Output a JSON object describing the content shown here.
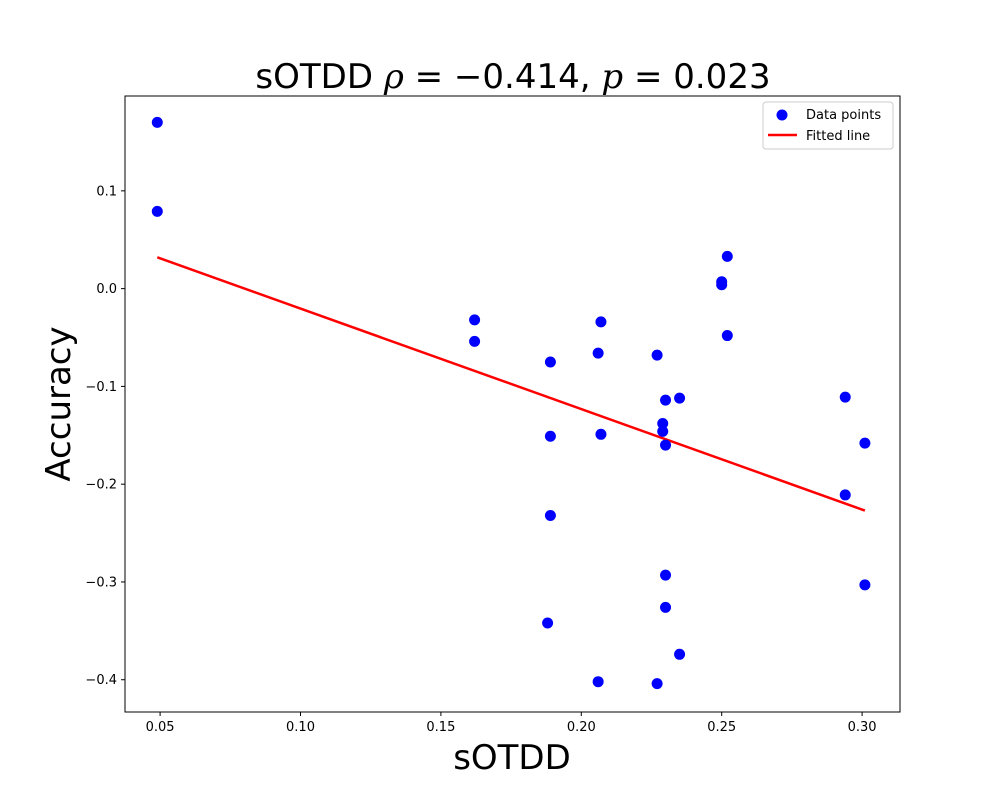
{
  "chart_data": {
    "type": "scatter",
    "title": {
      "prefix": "sOTDD ",
      "rho_symbol": "ρ",
      "rho_part": " = −0.414, ",
      "p_symbol": "p",
      "p_part": " = 0.023"
    },
    "xlabel": "sOTDD",
    "ylabel": "Accuracy",
    "xlim": [
      0.0375,
      0.3135
    ],
    "ylim": [
      -0.433,
      0.197
    ],
    "x_ticks": [
      0.05,
      0.1,
      0.15,
      0.2,
      0.25,
      0.3
    ],
    "x_tick_labels": [
      "0.05",
      "0.10",
      "0.15",
      "0.20",
      "0.25",
      "0.30"
    ],
    "y_ticks": [
      -0.4,
      -0.3,
      -0.2,
      -0.1,
      0.0,
      0.1
    ],
    "y_tick_labels": [
      "−0.4",
      "−0.3",
      "−0.2",
      "−0.1",
      "0.0",
      "0.1"
    ],
    "grid": false,
    "legend_position": "top-right",
    "series": [
      {
        "name": "Data points",
        "kind": "scatter",
        "color": "#0000ff",
        "points": [
          {
            "x": 0.049,
            "y": 0.17
          },
          {
            "x": 0.049,
            "y": 0.079
          },
          {
            "x": 0.162,
            "y": -0.032
          },
          {
            "x": 0.162,
            "y": -0.054
          },
          {
            "x": 0.189,
            "y": -0.075
          },
          {
            "x": 0.189,
            "y": -0.151
          },
          {
            "x": 0.189,
            "y": -0.232
          },
          {
            "x": 0.188,
            "y": -0.342
          },
          {
            "x": 0.207,
            "y": -0.034
          },
          {
            "x": 0.206,
            "y": -0.066
          },
          {
            "x": 0.207,
            "y": -0.149
          },
          {
            "x": 0.206,
            "y": -0.402
          },
          {
            "x": 0.227,
            "y": -0.068
          },
          {
            "x": 0.229,
            "y": -0.138
          },
          {
            "x": 0.229,
            "y": -0.146
          },
          {
            "x": 0.23,
            "y": -0.114
          },
          {
            "x": 0.23,
            "y": -0.16
          },
          {
            "x": 0.23,
            "y": -0.293
          },
          {
            "x": 0.23,
            "y": -0.326
          },
          {
            "x": 0.235,
            "y": -0.112
          },
          {
            "x": 0.235,
            "y": -0.374
          },
          {
            "x": 0.227,
            "y": -0.404
          },
          {
            "x": 0.25,
            "y": 0.007
          },
          {
            "x": 0.25,
            "y": 0.004
          },
          {
            "x": 0.252,
            "y": 0.033
          },
          {
            "x": 0.252,
            "y": -0.048
          },
          {
            "x": 0.294,
            "y": -0.111
          },
          {
            "x": 0.294,
            "y": -0.211
          },
          {
            "x": 0.301,
            "y": -0.158
          },
          {
            "x": 0.301,
            "y": -0.303
          }
        ]
      },
      {
        "name": "Fitted line",
        "kind": "line",
        "color": "#ff0000",
        "points": [
          {
            "x": 0.049,
            "y": 0.032
          },
          {
            "x": 0.301,
            "y": -0.227
          }
        ]
      }
    ]
  }
}
